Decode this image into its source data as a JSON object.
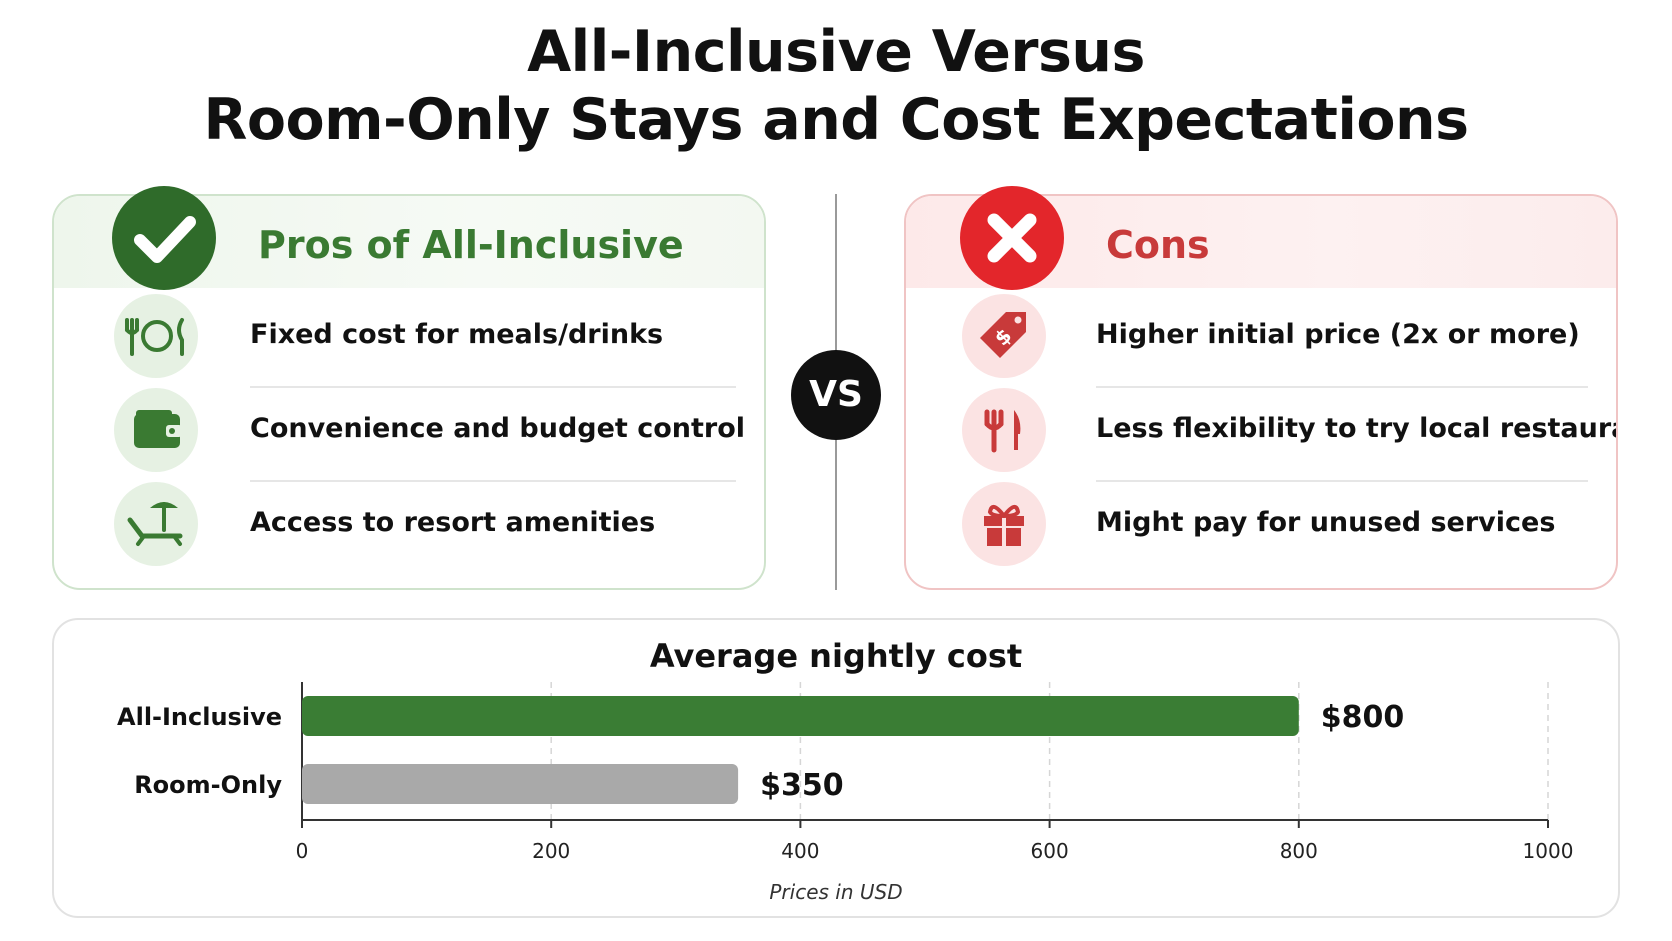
{
  "title": {
    "line1": "All-Inclusive Versus",
    "line2": "Room-Only Stays and Cost Expectations"
  },
  "pros": {
    "heading": "Pros of All-Inclusive",
    "badge_icon": "check-icon",
    "accent_color": "#2f6b2a",
    "items": [
      {
        "label": "Fixed cost for meals/drinks",
        "icon": "plate-fork-knife-icon"
      },
      {
        "label": "Convenience and budget control",
        "icon": "wallet-icon"
      },
      {
        "label": "Access to resort amenities",
        "icon": "beach-lounger-icon"
      }
    ]
  },
  "vs_label": "VS",
  "cons": {
    "heading": "Cons",
    "badge_icon": "cross-icon",
    "accent_color": "#e3262b",
    "items": [
      {
        "label": "Higher initial price (2x or more)",
        "icon": "price-tag-icon"
      },
      {
        "label": "Less flexibility to try local restaurants",
        "icon": "fork-knife-icon"
      },
      {
        "label": "Might pay for unused services",
        "icon": "gift-icon"
      }
    ]
  },
  "chart_data": {
    "type": "bar",
    "orientation": "horizontal",
    "title": "Average nightly cost",
    "xlabel": "Prices in USD",
    "ylabel": "",
    "categories": [
      "All-Inclusive",
      "Room-Only"
    ],
    "values": [
      800,
      350
    ],
    "data_labels": [
      "$800",
      "$350"
    ],
    "bar_colors": [
      "#3a7d34",
      "#a9a9a9"
    ],
    "xlim": [
      0,
      1000
    ],
    "xticks": [
      0,
      200,
      400,
      600,
      800,
      1000
    ],
    "grid": "vertical dashed",
    "legend": "none"
  }
}
